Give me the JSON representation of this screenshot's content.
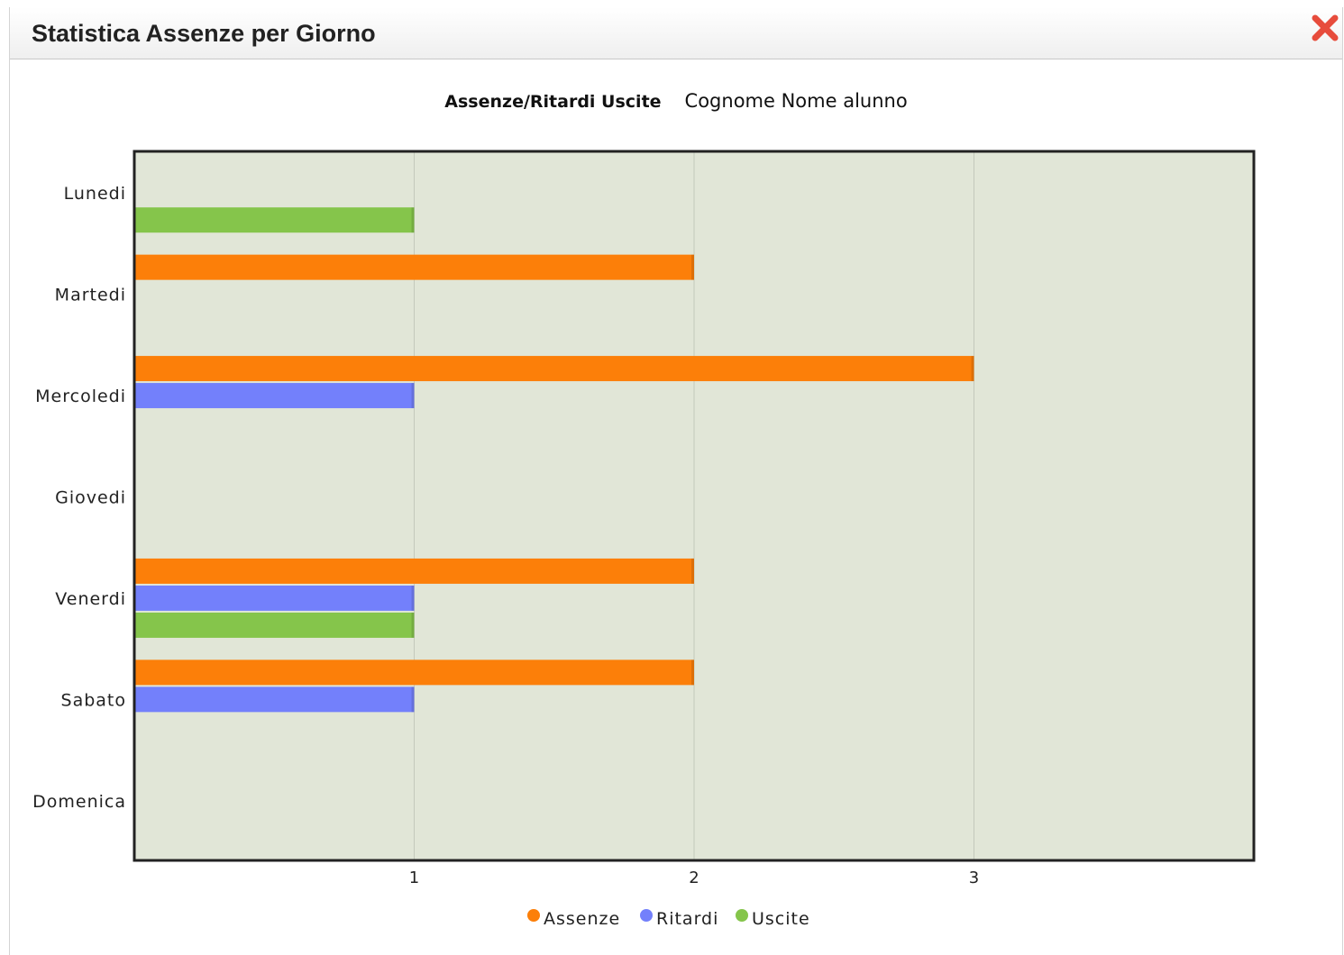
{
  "window": {
    "title": "Statistica Assenze per Giorno"
  },
  "header": {
    "label": "Assenze/Ritardi Uscite",
    "student": "Cognome Nome alunno"
  },
  "colors": {
    "Assenze": "#fc7f09",
    "Ritardi": "#7380fb",
    "Uscite": "#85c54b",
    "plot_bg": "#e1e6d7",
    "close": "#e74c3c"
  },
  "chart_data": {
    "type": "bar",
    "orientation": "horizontal",
    "categories": [
      "Lunedi",
      "Martedi",
      "Mercoledi",
      "Giovedi",
      "Venerdi",
      "Sabato",
      "Domenica"
    ],
    "series": [
      {
        "name": "Assenze",
        "values": [
          0,
          2,
          3,
          0,
          2,
          2,
          0
        ]
      },
      {
        "name": "Ritardi",
        "values": [
          0,
          0,
          1,
          0,
          1,
          1,
          0
        ]
      },
      {
        "name": "Uscite",
        "values": [
          1,
          0,
          0,
          0,
          1,
          0,
          0
        ]
      }
    ],
    "xticks": [
      1,
      2,
      3
    ],
    "xlim": [
      0,
      4
    ],
    "grid": true,
    "legend": "bottom-center"
  }
}
